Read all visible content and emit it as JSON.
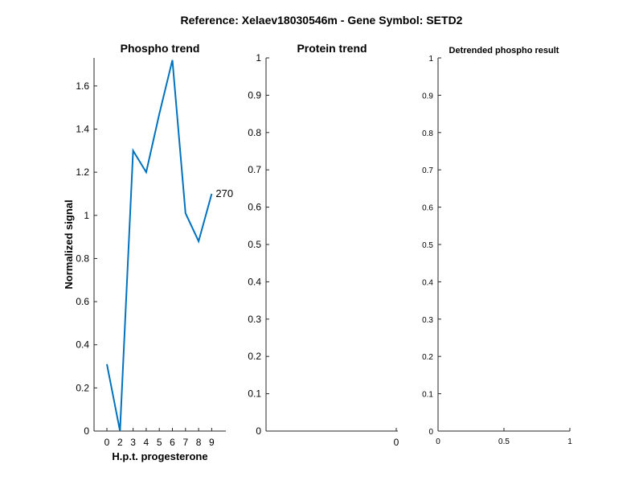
{
  "figure": {
    "suptitle": "Reference:  Xelaev18030546m - Gene Symbol:  SETD2"
  },
  "colors": {
    "series": "#0072BD",
    "axis": "#262626"
  },
  "chart_data": [
    {
      "id": "phospho",
      "type": "line",
      "title": "Phospho trend",
      "xlabel": "H.p.t. progesterone",
      "ylabel": "Normalized signal",
      "x_tick_labels": [
        "0",
        "2",
        "3",
        "4",
        "5",
        "6",
        "7",
        "8",
        "9"
      ],
      "y_ticks": [
        "0",
        "0.2",
        "0.4",
        "0.6",
        "0.8",
        "1",
        "1.2",
        "1.4",
        "1.6"
      ],
      "ylim": [
        0,
        1.73
      ],
      "series": [
        {
          "x_labels": [
            "0",
            "2",
            "3",
            "4",
            "5",
            "6",
            "7",
            "8",
            "9"
          ],
          "values": [
            0.31,
            0.0,
            1.3,
            1.2,
            1.47,
            1.72,
            1.01,
            0.88,
            1.1
          ]
        }
      ],
      "end_label": "270",
      "grid": false
    },
    {
      "id": "protein",
      "type": "line",
      "title": "Protein trend",
      "x_tick_labels": [
        "0"
      ],
      "y_ticks": [
        "0",
        "0.1",
        "0.2",
        "0.3",
        "0.4",
        "0.5",
        "0.6",
        "0.7",
        "0.8",
        "0.9",
        "1"
      ],
      "ylim": [
        0,
        1
      ],
      "series": [],
      "grid": false
    },
    {
      "id": "detrended",
      "type": "line",
      "title": "Detrended phospho result",
      "x_tick_labels": [
        "0",
        "0.5",
        "1"
      ],
      "xlim": [
        0,
        1
      ],
      "y_ticks": [
        "0",
        "0.1",
        "0.2",
        "0.3",
        "0.4",
        "0.5",
        "0.6",
        "0.7",
        "0.8",
        "0.9",
        "1"
      ],
      "ylim": [
        0,
        1
      ],
      "series": [],
      "grid": false
    }
  ]
}
